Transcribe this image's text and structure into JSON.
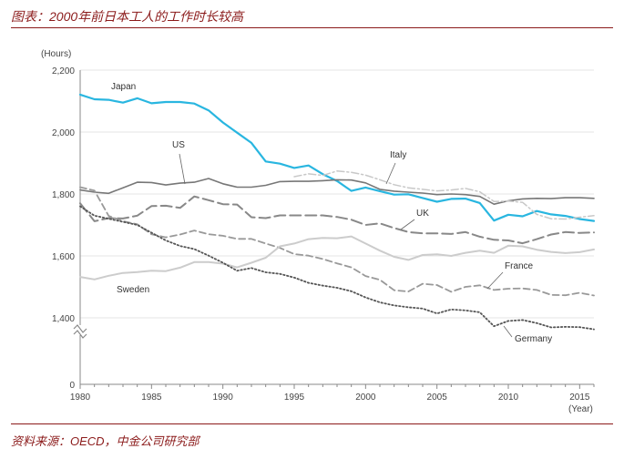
{
  "header": {
    "title": "图表：2000年前日本工人的工作时长较高"
  },
  "footer": {
    "source": "资料来源：OECD，中金公司研究部"
  },
  "chart_data": {
    "type": "line",
    "ylabel": "(Hours)",
    "xlabel": "(Year)",
    "xlim": [
      1980,
      2016
    ],
    "ylim": [
      0,
      2200
    ],
    "yticks": [
      0,
      1400,
      1600,
      1800,
      2000,
      2200
    ],
    "ytick_labels": [
      "0",
      "1,400",
      "1,600",
      "1,800",
      "2,000",
      "2,200"
    ],
    "xticks": [
      1980,
      1985,
      1990,
      1995,
      2000,
      2005,
      2010,
      2015
    ],
    "xtick_labels": [
      "1980",
      "1985",
      "1990",
      "1995",
      "2000",
      "2005",
      "2010",
      "2015"
    ],
    "axis_break": true,
    "grid": true,
    "series": [
      {
        "name": "Japan",
        "color": "#29b6e0",
        "style": "solid",
        "width": 2.2,
        "x": [
          1980,
          1981,
          1982,
          1983,
          1984,
          1985,
          1986,
          1987,
          1988,
          1989,
          1990,
          1991,
          1992,
          1993,
          1994,
          1995,
          1996,
          1997,
          1998,
          1999,
          2000,
          2001,
          2002,
          2003,
          2004,
          2005,
          2006,
          2007,
          2008,
          2009,
          2010,
          2011,
          2012,
          2013,
          2014,
          2015,
          2016
        ],
        "values": [
          2121,
          2106,
          2104,
          2095,
          2109,
          2093,
          2097,
          2097,
          2092,
          2070,
          2031,
          1998,
          1965,
          1905,
          1898,
          1884,
          1892,
          1864,
          1842,
          1810,
          1821,
          1809,
          1798,
          1799,
          1787,
          1775,
          1784,
          1785,
          1771,
          1714,
          1733,
          1728,
          1745,
          1734,
          1729,
          1719,
          1713
        ]
      },
      {
        "name": "US",
        "color": "#777777",
        "style": "solid",
        "width": 1.6,
        "x": [
          1980,
          1981,
          1982,
          1983,
          1984,
          1985,
          1986,
          1987,
          1988,
          1989,
          1990,
          1991,
          1992,
          1993,
          1994,
          1995,
          1996,
          1997,
          1998,
          1999,
          2000,
          2001,
          2002,
          2003,
          2004,
          2005,
          2006,
          2007,
          2008,
          2009,
          2010,
          2011,
          2012,
          2013,
          2014,
          2015,
          2016
        ],
        "values": [
          1813,
          1806,
          1802,
          1820,
          1838,
          1837,
          1829,
          1835,
          1838,
          1850,
          1833,
          1822,
          1822,
          1828,
          1840,
          1841,
          1841,
          1843,
          1846,
          1845,
          1836,
          1815,
          1809,
          1806,
          1803,
          1798,
          1800,
          1798,
          1792,
          1767,
          1778,
          1784,
          1786,
          1785,
          1788,
          1788,
          1786
        ]
      },
      {
        "name": "Italy",
        "color": "#c8c8c8",
        "style": "dashdot",
        "width": 1.5,
        "x": [
          1995,
          1996,
          1997,
          1998,
          1999,
          2000,
          2001,
          2002,
          2003,
          2004,
          2005,
          2006,
          2007,
          2008,
          2009,
          2010,
          2011,
          2012,
          2013,
          2014,
          2015,
          2016
        ],
        "values": [
          1856,
          1865,
          1860,
          1874,
          1870,
          1861,
          1846,
          1830,
          1820,
          1815,
          1810,
          1813,
          1818,
          1807,
          1776,
          1777,
          1773,
          1734,
          1720,
          1719,
          1725,
          1730
        ]
      },
      {
        "name": "UK",
        "color": "#888888",
        "style": "longdash",
        "width": 2,
        "x": [
          1980,
          1981,
          1982,
          1983,
          1984,
          1985,
          1986,
          1987,
          1988,
          1989,
          1990,
          1991,
          1992,
          1993,
          1994,
          1995,
          1996,
          1997,
          1998,
          1999,
          2000,
          2001,
          2002,
          2003,
          2004,
          2005,
          2006,
          2007,
          2008,
          2009,
          2010,
          2011,
          2012,
          2013,
          2014,
          2015,
          2016
        ],
        "values": [
          1770,
          1712,
          1722,
          1721,
          1730,
          1761,
          1762,
          1755,
          1792,
          1780,
          1767,
          1766,
          1725,
          1722,
          1731,
          1731,
          1731,
          1731,
          1726,
          1717,
          1700,
          1705,
          1690,
          1677,
          1673,
          1673,
          1671,
          1677,
          1662,
          1652,
          1650,
          1641,
          1654,
          1669,
          1677,
          1674,
          1676
        ]
      },
      {
        "name": "France",
        "color": "#999999",
        "style": "dashed",
        "width": 1.8,
        "x": [
          1980,
          1981,
          1982,
          1983,
          1984,
          1985,
          1986,
          1987,
          1988,
          1989,
          1990,
          1991,
          1992,
          1993,
          1994,
          1995,
          1996,
          1997,
          1998,
          1999,
          2000,
          2001,
          2002,
          2003,
          2004,
          2005,
          2006,
          2007,
          2008,
          2009,
          2010,
          2011,
          2012,
          2013,
          2014,
          2015,
          2016
        ],
        "values": [
          1822,
          1811,
          1729,
          1712,
          1702,
          1670,
          1660,
          1669,
          1682,
          1670,
          1665,
          1655,
          1655,
          1640,
          1626,
          1606,
          1601,
          1590,
          1576,
          1563,
          1535,
          1523,
          1489,
          1485,
          1510,
          1506,
          1484,
          1500,
          1505,
          1490,
          1494,
          1495,
          1490,
          1474,
          1473,
          1481,
          1472
        ]
      },
      {
        "name": "Sweden",
        "color": "#cccccc",
        "style": "solid",
        "width": 2,
        "x": [
          1980,
          1981,
          1982,
          1983,
          1984,
          1985,
          1986,
          1987,
          1988,
          1989,
          1990,
          1991,
          1992,
          1993,
          1994,
          1995,
          1996,
          1997,
          1998,
          1999,
          2000,
          2001,
          2002,
          2003,
          2004,
          2005,
          2006,
          2007,
          2008,
          2009,
          2010,
          2011,
          2012,
          2013,
          2014,
          2015,
          2016
        ],
        "values": [
          1532,
          1524,
          1536,
          1545,
          1548,
          1552,
          1551,
          1562,
          1580,
          1580,
          1575,
          1563,
          1578,
          1594,
          1631,
          1640,
          1654,
          1658,
          1657,
          1663,
          1640,
          1617,
          1597,
          1587,
          1603,
          1605,
          1600,
          1610,
          1617,
          1610,
          1633,
          1631,
          1620,
          1613,
          1609,
          1612,
          1621
        ]
      },
      {
        "name": "Germany",
        "color": "#555555",
        "style": "dotted",
        "width": 1.8,
        "x": [
          1980,
          1981,
          1982,
          1983,
          1984,
          1985,
          1986,
          1987,
          1988,
          1989,
          1990,
          1991,
          1992,
          1993,
          1994,
          1995,
          1996,
          1997,
          1998,
          1999,
          2000,
          2001,
          2002,
          2003,
          2004,
          2005,
          2006,
          2007,
          2008,
          2009,
          2010,
          2011,
          2012,
          2013,
          2014,
          2015,
          2016
        ],
        "values": [
          1760,
          1730,
          1720,
          1710,
          1700,
          1675,
          1650,
          1632,
          1622,
          1601,
          1578,
          1552,
          1561,
          1547,
          1542,
          1530,
          1513,
          1504,
          1497,
          1486,
          1466,
          1450,
          1440,
          1434,
          1430,
          1414,
          1427,
          1424,
          1418,
          1373,
          1390,
          1393,
          1383,
          1369,
          1371,
          1370,
          1363
        ]
      }
    ]
  }
}
